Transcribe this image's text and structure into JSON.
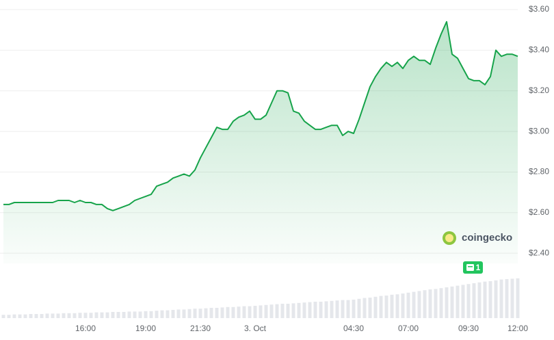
{
  "chart_data": {
    "type": "line",
    "categories": [
      null,
      null,
      null,
      null,
      null,
      null,
      null,
      null,
      null,
      null,
      null,
      null,
      null,
      null,
      null,
      "16:00",
      null,
      null,
      null,
      null,
      null,
      null,
      null,
      null,
      null,
      null,
      "19:00",
      null,
      null,
      null,
      null,
      null,
      null,
      null,
      null,
      null,
      "21:30",
      null,
      null,
      null,
      null,
      null,
      null,
      null,
      null,
      null,
      "3. Oct",
      null,
      null,
      null,
      null,
      null,
      null,
      null,
      null,
      null,
      null,
      null,
      null,
      null,
      null,
      null,
      null,
      null,
      "04:30",
      null,
      null,
      null,
      null,
      null,
      null,
      null,
      null,
      null,
      "07:00",
      null,
      null,
      null,
      null,
      null,
      null,
      null,
      null,
      null,
      null,
      "09:30",
      null,
      null,
      null,
      null,
      null,
      null,
      null,
      null,
      "12:00"
    ],
    "series": [
      {
        "color": "#16a34a",
        "values": [
          2.64,
          2.64,
          2.65,
          2.65,
          2.65,
          2.65,
          2.65,
          2.65,
          2.65,
          2.65,
          2.66,
          2.66,
          2.66,
          2.65,
          2.66,
          2.65,
          2.65,
          2.64,
          2.64,
          2.62,
          2.61,
          2.62,
          2.63,
          2.64,
          2.66,
          2.67,
          2.68,
          2.69,
          2.73,
          2.74,
          2.75,
          2.77,
          2.78,
          2.79,
          2.78,
          2.81,
          2.87,
          2.92,
          2.97,
          3.02,
          3.01,
          3.01,
          3.05,
          3.07,
          3.08,
          3.1,
          3.06,
          3.06,
          3.08,
          3.14,
          3.2,
          3.2,
          3.19,
          3.1,
          3.09,
          3.05,
          3.03,
          3.01,
          3.01,
          3.02,
          3.03,
          3.03,
          2.98,
          3.0,
          2.99,
          3.06,
          3.14,
          3.22,
          3.27,
          3.31,
          3.34,
          3.32,
          3.34,
          3.31,
          3.35,
          3.37,
          3.35,
          3.35,
          3.33,
          3.41,
          3.48,
          3.54,
          3.38,
          3.36,
          3.31,
          3.26,
          3.25,
          3.25,
          3.23,
          3.27,
          3.4,
          3.37,
          3.38,
          3.38,
          3.37
        ]
      },
      {
        "color": "#e5e7eb",
        "axis": "y2",
        "values": [
          8,
          8,
          9,
          9,
          9,
          10,
          10,
          10,
          11,
          11,
          11,
          12,
          12,
          12,
          13,
          13,
          13,
          14,
          14,
          14,
          15,
          15,
          15,
          16,
          16,
          16,
          17,
          17,
          18,
          19,
          19,
          20,
          21,
          21,
          22,
          23,
          23,
          24,
          25,
          25,
          26,
          27,
          27,
          28,
          29,
          29,
          30,
          31,
          32,
          33,
          34,
          35,
          35,
          36,
          37,
          38,
          39,
          40,
          40,
          41,
          42,
          43,
          44,
          44,
          45,
          47,
          49,
          50,
          52,
          54,
          55,
          57,
          58,
          60,
          62,
          64,
          66,
          68,
          70,
          71,
          73,
          75,
          77,
          79,
          81,
          83,
          85,
          87,
          89,
          90,
          92,
          94,
          95,
          96,
          97
        ]
      }
    ],
    "ylim": [
      2.35,
      3.6
    ],
    "yticks": [
      {
        "value": 2.4,
        "label": "$2.40"
      },
      {
        "value": 2.6,
        "label": "$2.60"
      },
      {
        "value": 2.8,
        "label": "$2.80"
      },
      {
        "value": 3.0,
        "label": "$3.00"
      },
      {
        "value": 3.2,
        "label": "$3.20"
      },
      {
        "value": 3.4,
        "label": "$3.40"
      },
      {
        "value": 3.6,
        "label": "$3.60"
      }
    ],
    "y2lim": [
      0,
      100
    ],
    "grid": true,
    "watermark": "coingecko",
    "badge": "1"
  }
}
